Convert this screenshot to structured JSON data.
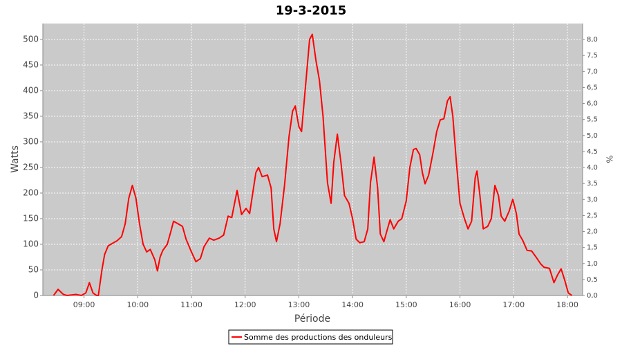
{
  "chart_data": {
    "type": "line",
    "title": "19-3-2015",
    "xlabel": "Période",
    "ylabel": "Watts",
    "y2label": "%",
    "xlim": [
      "08:14",
      "18:17"
    ],
    "xticks": [
      "09:00",
      "10:00",
      "11:00",
      "12:00",
      "13:00",
      "14:00",
      "15:00",
      "16:00",
      "17:00",
      "18:00"
    ],
    "ylim": [
      0,
      531
    ],
    "yticks": [
      0,
      50,
      100,
      150,
      200,
      250,
      300,
      350,
      400,
      450,
      500
    ],
    "y2lim": [
      0,
      8.5
    ],
    "y2ticks": [
      {
        "value": 0,
        "label": "0,0"
      },
      {
        "value": 0.5,
        "label": "0,5"
      },
      {
        "value": 1,
        "label": "1,0"
      },
      {
        "value": 1.5,
        "label": "1,5"
      },
      {
        "value": 2,
        "label": "2,0"
      },
      {
        "value": 2.5,
        "label": "2,5"
      },
      {
        "value": 3,
        "label": "3,0"
      },
      {
        "value": 3.5,
        "label": "3,5"
      },
      {
        "value": 4,
        "label": "4,0"
      },
      {
        "value": 4.5,
        "label": "4,5"
      },
      {
        "value": 5,
        "label": "5,0"
      },
      {
        "value": 5.5,
        "label": "5,5"
      },
      {
        "value": 6,
        "label": "6,0"
      },
      {
        "value": 6.5,
        "label": "6,5"
      },
      {
        "value": 7,
        "label": "7,0"
      },
      {
        "value": 7.5,
        "label": "7,5"
      },
      {
        "value": 8,
        "label": "8,0"
      }
    ],
    "grid": true,
    "legend": "bottom",
    "x": [
      "08:26",
      "08:31",
      "08:37",
      "08:41",
      "08:51",
      "08:57",
      "09:02",
      "09:06",
      "09:10",
      "09:14",
      "09:16",
      "09:20",
      "09:23",
      "09:27",
      "09:32",
      "09:37",
      "09:42",
      "09:46",
      "09:50",
      "09:54",
      "09:58",
      "10:02",
      "10:06",
      "10:10",
      "10:14",
      "10:19",
      "10:22",
      "10:25",
      "10:28",
      "10:33",
      "10:37",
      "10:40",
      "10:45",
      "10:50",
      "10:54",
      "11:00",
      "11:05",
      "11:10",
      "11:14",
      "11:20",
      "11:25",
      "11:31",
      "11:36",
      "11:41",
      "11:45",
      "11:51",
      "11:56",
      "12:01",
      "12:05",
      "12:12",
      "12:15",
      "12:19",
      "12:25",
      "12:29",
      "12:32",
      "12:35",
      "12:39",
      "12:44",
      "12:49",
      "12:53",
      "12:56",
      "13:00",
      "13:03",
      "13:07",
      "13:12",
      "13:15",
      "13:19",
      "13:23",
      "13:27",
      "13:32",
      "13:36",
      "13:39",
      "13:43",
      "13:47",
      "13:51",
      "13:56",
      "14:00",
      "14:04",
      "14:08",
      "14:13",
      "14:17",
      "14:20",
      "14:24",
      "14:28",
      "14:31",
      "14:35",
      "14:39",
      "14:42",
      "14:46",
      "14:51",
      "14:55",
      "15:00",
      "15:04",
      "15:08",
      "15:11",
      "15:15",
      "15:18",
      "15:21",
      "15:25",
      "15:30",
      "15:34",
      "15:38",
      "15:42",
      "15:46",
      "15:49",
      "15:52",
      "15:56",
      "16:00",
      "16:05",
      "16:09",
      "16:13",
      "16:17",
      "16:19",
      "16:22",
      "16:26",
      "16:31",
      "16:35",
      "16:39",
      "16:43",
      "16:46",
      "16:50",
      "16:55",
      "16:59",
      "17:03",
      "17:06",
      "17:10",
      "17:15",
      "17:20",
      "17:25",
      "17:30",
      "17:34",
      "17:40",
      "17:45",
      "17:49",
      "17:53",
      "17:57",
      "18:01",
      "18:05"
    ],
    "series": [
      {
        "name": "Somme des productions des onduleurs",
        "color": "#ff0000",
        "values": [
          0,
          12,
          2,
          0,
          2,
          0,
          5,
          25,
          5,
          0,
          0,
          50,
          80,
          97,
          102,
          107,
          115,
          140,
          190,
          215,
          190,
          140,
          100,
          85,
          90,
          70,
          48,
          75,
          88,
          100,
          125,
          145,
          140,
          135,
          110,
          85,
          66,
          72,
          95,
          112,
          108,
          112,
          118,
          155,
          152,
          205,
          158,
          170,
          160,
          240,
          250,
          232,
          235,
          210,
          130,
          105,
          140,
          215,
          310,
          360,
          370,
          330,
          320,
          400,
          500,
          510,
          460,
          420,
          350,
          220,
          180,
          260,
          315,
          260,
          195,
          180,
          150,
          110,
          103,
          105,
          130,
          220,
          270,
          210,
          120,
          105,
          130,
          148,
          130,
          145,
          150,
          185,
          250,
          285,
          287,
          275,
          240,
          218,
          235,
          280,
          320,
          343,
          345,
          380,
          388,
          350,
          260,
          180,
          150,
          130,
          145,
          230,
          243,
          200,
          130,
          135,
          150,
          215,
          195,
          155,
          145,
          165,
          188,
          160,
          120,
          108,
          88,
          87,
          75,
          62,
          55,
          53,
          25,
          40,
          52,
          30,
          5,
          0
        ]
      }
    ]
  }
}
